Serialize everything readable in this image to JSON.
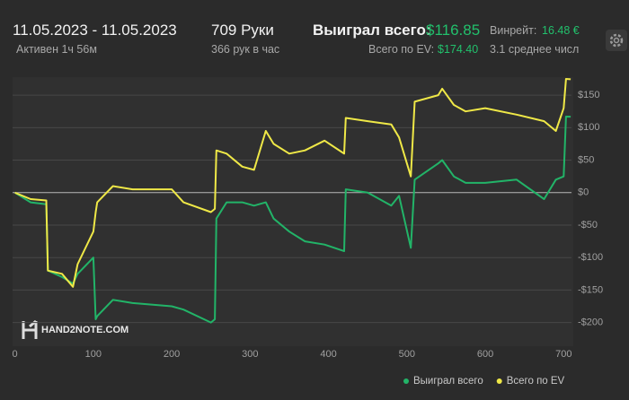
{
  "header": {
    "date_range": "11.05.2023 - 11.05.2023",
    "active": "Активен 1ч 56м",
    "hands": "709 Руки",
    "hands_per_hour": "366 рук в час",
    "won_label": "Выиграл всего:",
    "won_value": "$116.85",
    "ev_label": "Всего по EV:",
    "ev_value": "$174.40",
    "winrate_label": "Винрейт:",
    "winrate_value": "16.48 €",
    "avg_label": "3.1 среднее числ"
  },
  "watermark": "HAND2NOTE.COM",
  "chart_data": {
    "type": "line",
    "x": [
      0,
      20,
      40,
      42,
      60,
      74,
      80,
      100,
      103,
      105,
      125,
      150,
      200,
      215,
      250,
      255,
      257,
      270,
      290,
      305,
      320,
      330,
      350,
      370,
      395,
      420,
      422,
      450,
      480,
      490,
      505,
      510,
      540,
      545,
      560,
      575,
      600,
      640,
      675,
      690,
      700,
      703,
      709
    ],
    "series": [
      {
        "name": "Выиграл всего",
        "color": "#22b468",
        "values": [
          0,
          -15,
          -18,
          -120,
          -130,
          -140,
          -125,
          -100,
          -195,
          -190,
          -165,
          -170,
          -175,
          -180,
          -200,
          -195,
          -40,
          -15,
          -15,
          -20,
          -15,
          -40,
          -60,
          -75,
          -80,
          -90,
          5,
          0,
          -20,
          -5,
          -85,
          20,
          45,
          50,
          25,
          15,
          15,
          20,
          -10,
          20,
          25,
          117,
          116.85
        ]
      },
      {
        "name": "Всего по EV",
        "color": "#efe847",
        "values": [
          0,
          -10,
          -12,
          -120,
          -125,
          -145,
          -110,
          -60,
          -30,
          -15,
          10,
          5,
          5,
          -15,
          -30,
          -25,
          65,
          60,
          40,
          35,
          95,
          75,
          60,
          65,
          80,
          60,
          115,
          110,
          105,
          85,
          25,
          140,
          150,
          160,
          135,
          125,
          130,
          120,
          110,
          95,
          130,
          175,
          174.4
        ]
      }
    ],
    "xlim": [
      -3,
      710
    ],
    "ylim": [
      -235,
      175
    ],
    "xticks": [
      0,
      100,
      200,
      300,
      400,
      500,
      600,
      700
    ],
    "yticks": [
      {
        "value": -200,
        "label": "-$200"
      },
      {
        "value": -150,
        "label": "-$150"
      },
      {
        "value": -100,
        "label": "-$100"
      },
      {
        "value": -50,
        "label": "-$50"
      },
      {
        "value": 0,
        "label": "$0"
      },
      {
        "value": 50,
        "label": "$50"
      },
      {
        "value": 100,
        "label": "$100"
      },
      {
        "value": 150,
        "label": "$150"
      }
    ],
    "grid": true,
    "legend": "bottom-right"
  }
}
